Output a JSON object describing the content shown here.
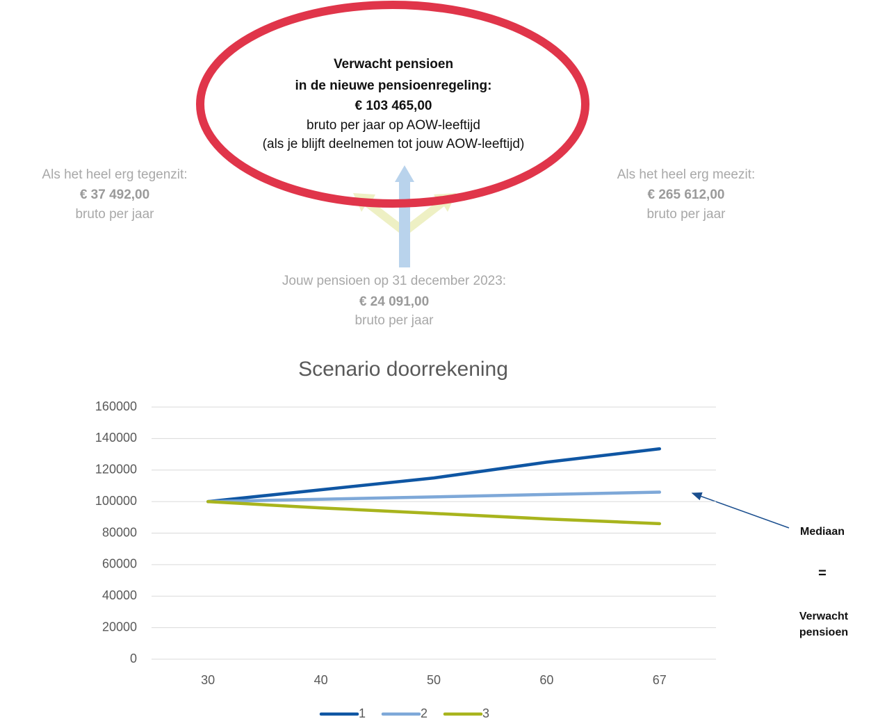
{
  "infographic": {
    "center": {
      "lines": [
        "Verwacht pensioen",
        "in de nieuwe pensioenregeling:",
        "€ 103 465,00",
        "bruto per jaar op AOW-leeftijd",
        "(als je blijft deelnemen tot jouw AOW-leeftijd)"
      ]
    },
    "left": {
      "lines": [
        "Als het heel erg tegenzit:",
        "€ 37 492,00",
        "bruto per jaar"
      ]
    },
    "right": {
      "lines": [
        "Als het heel erg meezit:",
        "€ 265 612,00",
        "bruto per jaar"
      ]
    },
    "bottom": {
      "lines": [
        "Jouw pensioen op 31 december 2023:",
        "€ 24 091,00",
        "bruto per jaar"
      ]
    }
  },
  "chart_data": {
    "type": "line",
    "title": "Scenario doorrekening",
    "categories": [
      30,
      40,
      50,
      60,
      67
    ],
    "series": [
      {
        "name": "1",
        "color": "#0f56a3",
        "values": [
          100000,
          107500,
          115000,
          125000,
          133500
        ]
      },
      {
        "name": "2",
        "color": "#7ea8d8",
        "values": [
          100000,
          101500,
          103000,
          104500,
          106000
        ]
      },
      {
        "name": "3",
        "color": "#a8b41d",
        "values": [
          100000,
          96000,
          92500,
          89000,
          86000
        ]
      }
    ],
    "ylim": [
      0,
      160000
    ],
    "yticks": [
      0,
      20000,
      40000,
      60000,
      80000,
      100000,
      120000,
      140000,
      160000
    ],
    "grid": true,
    "legend": "bottom",
    "annotation": {
      "label": "Mediaan",
      "equals": "=",
      "lines": [
        "Verwacht",
        "pensioen"
      ]
    }
  }
}
